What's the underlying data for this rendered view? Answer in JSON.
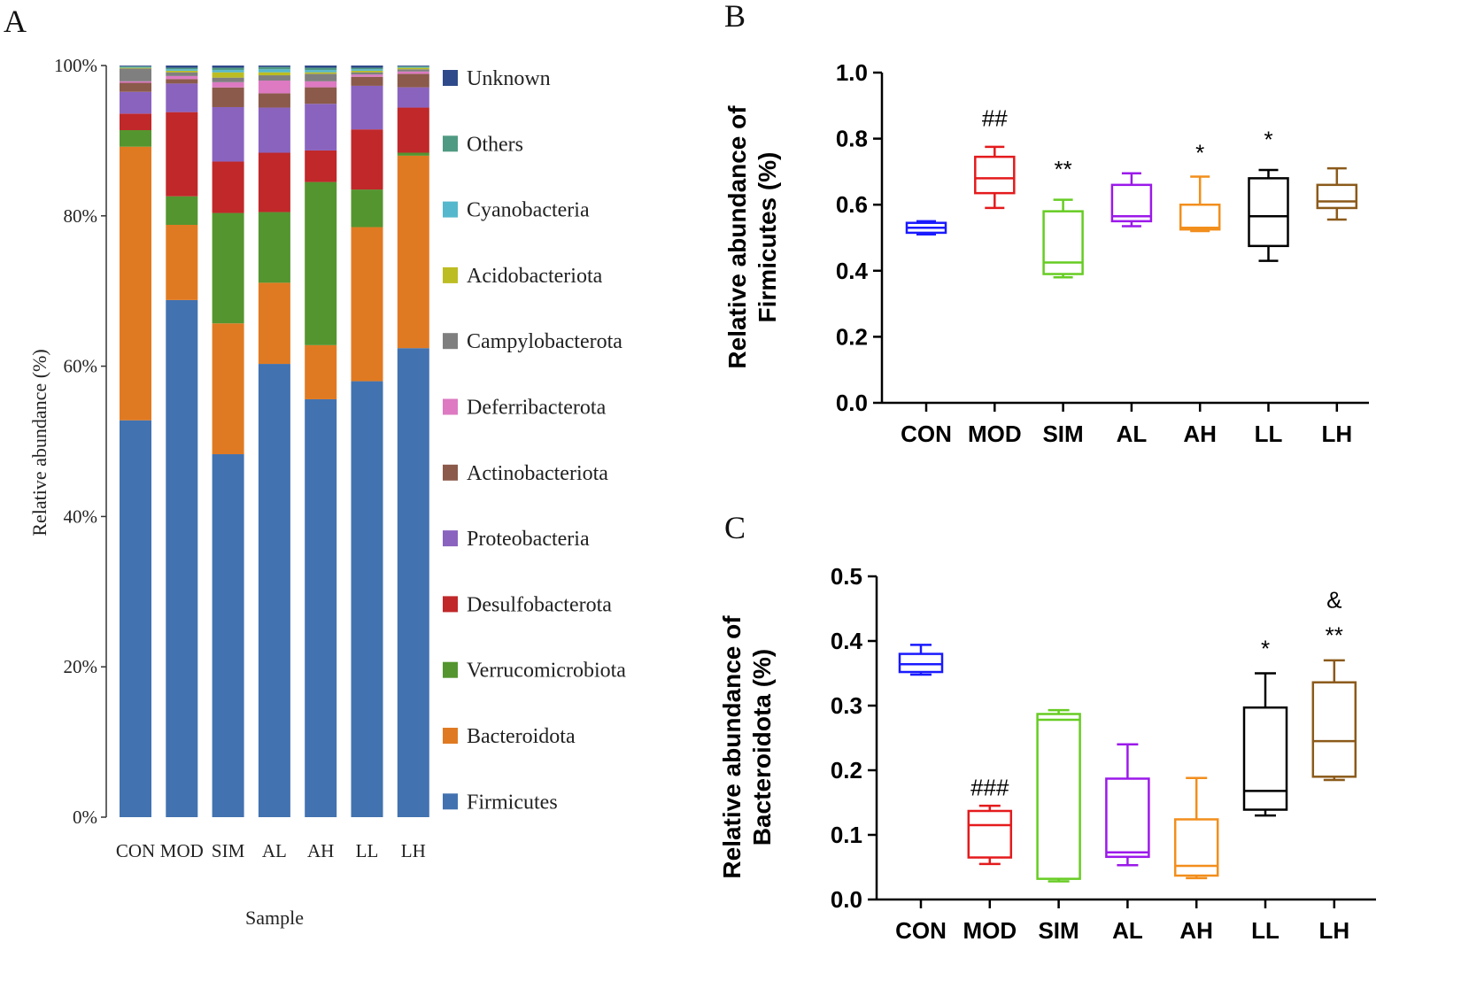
{
  "panels": {
    "a": "A",
    "b": "B",
    "c": "C"
  },
  "chart_data": [
    {
      "type": "bar",
      "stacked": true,
      "xlabel": "Sample",
      "ylabel": "Relative abundance (%)",
      "ylim": [
        0,
        100
      ],
      "yticks": [
        "0%",
        "20%",
        "40%",
        "60%",
        "80%",
        "100%"
      ],
      "categories": [
        "CON",
        "MOD",
        "SIM",
        "AL",
        "AH",
        "LL",
        "LH"
      ],
      "legend_position": "right",
      "series": [
        {
          "name": "Firmicutes",
          "color": "#4272b0",
          "values": [
            52.8,
            68.8,
            48.0,
            60.3,
            55.6,
            58.0,
            62.4
          ]
        },
        {
          "name": "Bacteroidota",
          "color": "#e07a22",
          "values": [
            36.4,
            10.0,
            17.3,
            10.8,
            7.2,
            20.5,
            25.6
          ]
        },
        {
          "name": "Verrucomicrobiota",
          "color": "#54952f",
          "values": [
            2.2,
            3.8,
            14.6,
            9.4,
            21.7,
            5.0,
            0.4
          ]
        },
        {
          "name": "Desulfobacterota",
          "color": "#c0282a",
          "values": [
            2.2,
            11.2,
            6.8,
            7.9,
            4.2,
            8.0,
            6.0
          ]
        },
        {
          "name": "Proteobacteria",
          "color": "#8a63bf",
          "values": [
            2.9,
            3.8,
            7.2,
            6.0,
            6.2,
            5.8,
            2.7
          ]
        },
        {
          "name": "Actinobacteriota",
          "color": "#8b5a4b",
          "values": [
            1.2,
            0.6,
            2.6,
            1.9,
            2.2,
            1.2,
            1.8
          ]
        },
        {
          "name": "Deferribacterota",
          "color": "#dd7ac2",
          "values": [
            0.2,
            0.4,
            0.7,
            1.7,
            0.8,
            0.3,
            0.3
          ]
        },
        {
          "name": "Campylobacterota",
          "color": "#7f7f7f",
          "values": [
            1.7,
            0.5,
            0.6,
            0.7,
            1.0,
            0.3,
            0.3
          ]
        },
        {
          "name": "Acidobacteriota",
          "color": "#bcbd22",
          "values": [
            0.1,
            0.2,
            0.7,
            0.4,
            0.2,
            0.2,
            0.2
          ]
        },
        {
          "name": "Cyanobacteria",
          "color": "#56b8cc",
          "values": [
            0.1,
            0.2,
            0.3,
            0.4,
            0.3,
            0.2,
            0.1
          ]
        },
        {
          "name": "Others",
          "color": "#4f9a82",
          "values": [
            0.1,
            0.2,
            0.3,
            0.3,
            0.3,
            0.2,
            0.1
          ]
        },
        {
          "name": "Unknown",
          "color": "#2f4a8a",
          "values": [
            0.1,
            0.3,
            0.3,
            0.2,
            0.3,
            0.3,
            0.1
          ]
        }
      ]
    },
    {
      "type": "box",
      "ylabel_line1": "Relative abundance of",
      "ylabel_line2": "Firmicutes (%)",
      "ylim": [
        0,
        1.0
      ],
      "yticks": [
        "0.0",
        "0.2",
        "0.4",
        "0.6",
        "0.8",
        "1.0"
      ],
      "categories": [
        "CON",
        "MOD",
        "SIM",
        "AL",
        "AH",
        "LL",
        "LH"
      ],
      "colors": [
        "#1a1aff",
        "#e41a1c",
        "#66cc22",
        "#9b19ea",
        "#f28e1c",
        "#000000",
        "#8b5a1a"
      ],
      "boxes": [
        {
          "min": 0.51,
          "q1": 0.515,
          "median": 0.53,
          "q3": 0.545,
          "max": 0.55
        },
        {
          "min": 0.59,
          "q1": 0.635,
          "median": 0.68,
          "q3": 0.745,
          "max": 0.775
        },
        {
          "min": 0.38,
          "q1": 0.39,
          "median": 0.425,
          "q3": 0.58,
          "max": 0.615
        },
        {
          "min": 0.535,
          "q1": 0.55,
          "median": 0.565,
          "q3": 0.66,
          "max": 0.695
        },
        {
          "min": 0.52,
          "q1": 0.525,
          "median": 0.53,
          "q3": 0.6,
          "max": 0.685
        },
        {
          "min": 0.43,
          "q1": 0.475,
          "median": 0.565,
          "q3": 0.68,
          "max": 0.705
        },
        {
          "min": 0.555,
          "q1": 0.59,
          "median": 0.61,
          "q3": 0.66,
          "max": 0.71
        }
      ],
      "annotations": [
        {
          "category": "MOD",
          "text": "##",
          "y": 0.865
        },
        {
          "category": "SIM",
          "text": "**",
          "y": 0.71
        },
        {
          "category": "AH",
          "text": "*",
          "y": 0.76
        },
        {
          "category": "LL",
          "text": "*",
          "y": 0.8
        }
      ]
    },
    {
      "type": "box",
      "ylabel_line1": "Relative abundance of",
      "ylabel_line2": "Bacteroidota (%)",
      "ylim": [
        0,
        0.5
      ],
      "yticks": [
        "0.0",
        "0.1",
        "0.2",
        "0.3",
        "0.4",
        "0.5"
      ],
      "categories": [
        "CON",
        "MOD",
        "SIM",
        "AL",
        "AH",
        "LL",
        "LH"
      ],
      "colors": [
        "#1a1aff",
        "#e41a1c",
        "#66cc22",
        "#9b19ea",
        "#f28e1c",
        "#000000",
        "#8b5a1a"
      ],
      "boxes": [
        {
          "min": 0.348,
          "q1": 0.352,
          "median": 0.364,
          "q3": 0.38,
          "max": 0.394
        },
        {
          "min": 0.055,
          "q1": 0.065,
          "median": 0.115,
          "q3": 0.137,
          "max": 0.145
        },
        {
          "min": 0.028,
          "q1": 0.032,
          "median": 0.278,
          "q3": 0.287,
          "max": 0.293
        },
        {
          "min": 0.053,
          "q1": 0.066,
          "median": 0.073,
          "q3": 0.187,
          "max": 0.24
        },
        {
          "min": 0.033,
          "q1": 0.037,
          "median": 0.052,
          "q3": 0.124,
          "max": 0.188
        },
        {
          "min": 0.13,
          "q1": 0.139,
          "median": 0.168,
          "q3": 0.297,
          "max": 0.35
        },
        {
          "min": 0.185,
          "q1": 0.19,
          "median": 0.245,
          "q3": 0.336,
          "max": 0.37
        }
      ],
      "annotations": [
        {
          "category": "MOD",
          "text": "###",
          "y": 0.175
        },
        {
          "category": "LL",
          "text": "*",
          "y": 0.39
        },
        {
          "category": "LH",
          "text": "**",
          "y": 0.41
        },
        {
          "category": "LH",
          "text": "&",
          "y": 0.465
        }
      ]
    }
  ]
}
